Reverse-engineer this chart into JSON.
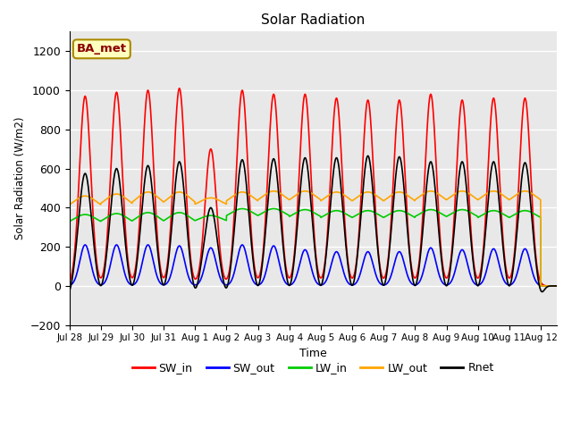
{
  "title": "Solar Radiation",
  "xlabel": "Time",
  "ylabel": "Solar Radiation (W/m2)",
  "ylim": [
    -200,
    1300
  ],
  "yticks": [
    -200,
    0,
    200,
    400,
    600,
    800,
    1000,
    1200
  ],
  "annotation": "BA_met",
  "tick_labels": [
    "Jul 28",
    "Jul 29",
    "Jul 30",
    "Jul 31",
    "Aug 1",
    "Aug 2",
    "Aug 3",
    "Aug 4",
    "Aug 5",
    "Aug 6",
    "Aug 7",
    "Aug 8",
    "Aug 9",
    "Aug 10",
    "Aug 11",
    "Aug 12"
  ],
  "legend_entries": [
    "SW_in",
    "SW_out",
    "LW_in",
    "LW_out",
    "Rnet"
  ],
  "legend_colors": [
    "#ff0000",
    "#0000ff",
    "#00cc00",
    "#ffa500",
    "#000000"
  ],
  "SW_in_peaks": [
    970,
    990,
    1000,
    1010,
    700,
    1000,
    980,
    980,
    960,
    950,
    950,
    980,
    950,
    960,
    960
  ],
  "SW_out_peaks": [
    210,
    210,
    210,
    205,
    195,
    210,
    205,
    185,
    175,
    175,
    175,
    195,
    185,
    190,
    190
  ],
  "LW_in_base": [
    310,
    310,
    310,
    310,
    320,
    340,
    340,
    335,
    330,
    330,
    330,
    335,
    335,
    330,
    330
  ],
  "LW_in_peak_add": [
    55,
    60,
    65,
    65,
    40,
    55,
    55,
    55,
    55,
    55,
    55,
    55,
    55,
    55,
    55
  ],
  "LW_out_base": [
    390,
    395,
    400,
    400,
    400,
    410,
    415,
    415,
    410,
    410,
    410,
    415,
    415,
    415,
    415
  ],
  "LW_out_peak_add": [
    70,
    75,
    80,
    80,
    50,
    70,
    70,
    70,
    70,
    70,
    70,
    70,
    70,
    70,
    70
  ],
  "Rnet_peaks": [
    575,
    600,
    615,
    635,
    400,
    645,
    650,
    655,
    655,
    665,
    660,
    635,
    635,
    635,
    630
  ],
  "Rnet_night": [
    -50,
    -50,
    -50,
    -55,
    -55,
    -55,
    -55,
    -55,
    -55,
    -55,
    -55,
    -55,
    -55,
    -55,
    -50
  ],
  "bg_color": "#e8e8e8",
  "line_lw": 1.2,
  "grid_color": "white",
  "grid_lw": 1.0
}
